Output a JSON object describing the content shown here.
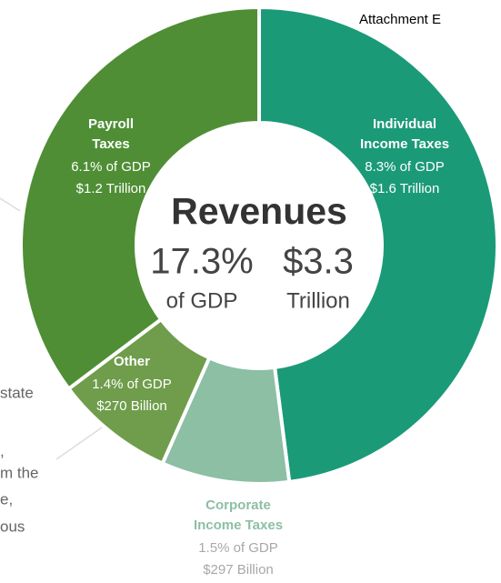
{
  "chart_data": {
    "type": "donut",
    "header": "Attachment E",
    "title": "Revenues",
    "total_label": "17.3%",
    "total_unit": "of GDP",
    "amount_label": "$3.3",
    "amount_unit": "Trillion",
    "categories": [
      [
        "Individual",
        "Income Taxes"
      ],
      [
        "Corporate",
        "Income Taxes"
      ],
      [
        "Other"
      ],
      [
        "Payroll",
        "Taxes"
      ]
    ],
    "values": [
      8.3,
      1.5,
      1.4,
      6.1
    ],
    "value_labels": [
      "8.3% of GDP",
      "1.5% of GDP",
      "1.4% of GDP",
      "6.1% of GDP"
    ],
    "amount_labels": [
      "$1.6 Trillion",
      "$297 Billion",
      "$270 Billion",
      "$1.2 Trillion"
    ],
    "colors": [
      "#1b9a78",
      "#8cbfa4",
      "#6f9d4b",
      "#4f8e35"
    ],
    "side_text": [
      "state",
      ",",
      "m the",
      "e,",
      "ous"
    ]
  }
}
